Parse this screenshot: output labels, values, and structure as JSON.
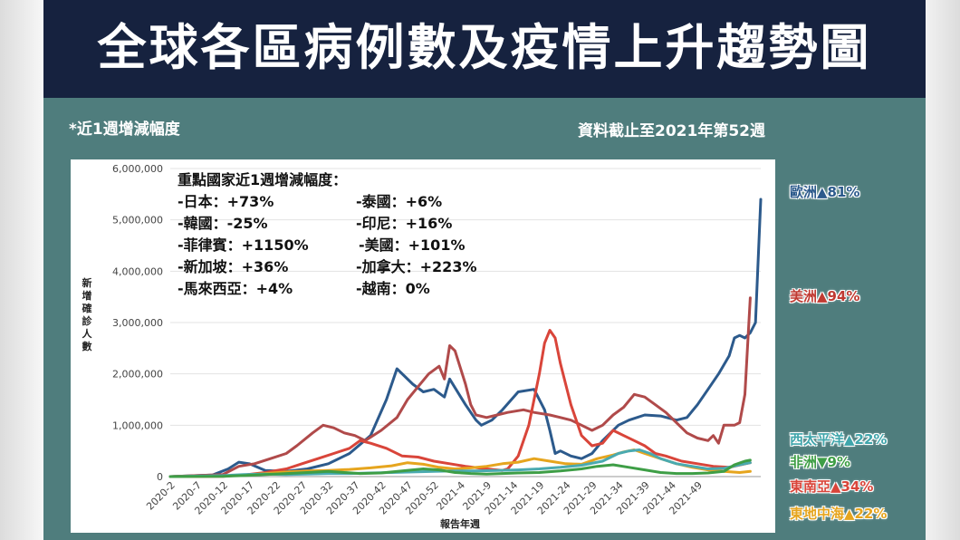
{
  "header": {
    "title": "全球各區病例數及疫情上升趨勢圖"
  },
  "notes": {
    "left": "*近1週增減幅度",
    "right": "資料截止至2021年第52週"
  },
  "callout": {
    "heading": "重點國家近1週增減幅度：",
    "items": [
      "-日本：+73%",
      "-泰國：+6%",
      "-韓國：-25%",
      "-印尼：+16%",
      "-菲律賓：+1150%",
      "-美國：+101%",
      "-新加坡：+36%",
      "-加拿大：+223%",
      "-馬來西亞：+4%",
      "-越南：0%"
    ]
  },
  "region_labels": {
    "europe": "歐洲▲81%",
    "americas": "美洲▲94%",
    "western_pacific": "西太平洋▲22%",
    "africa": "非洲▼9%",
    "southeast_asia": "東南亞▲34%",
    "eastern_mediterranean": "東地中海▲22%"
  },
  "chart_data": {
    "type": "line",
    "title": "",
    "xlabel": "報告年週",
    "ylabel": "新增確診人數",
    "ylim": [
      0,
      6000000
    ],
    "yticks": [
      0,
      1000000,
      2000000,
      3000000,
      4000000,
      5000000,
      6000000
    ],
    "ytick_labels": [
      "0",
      "1,000,000",
      "2,000,000",
      "3,000,000",
      "4,000,000",
      "5,000,000",
      "6,000,000"
    ],
    "xtick_labels": [
      "2020-2",
      "2020-7",
      "2020-12",
      "2020-17",
      "2020-22",
      "2020-27",
      "2020-32",
      "2020-37",
      "2020-42",
      "2020-47",
      "2020-52",
      "2021-4",
      "2021-9",
      "2021-14",
      "2021-19",
      "2021-24",
      "2021-29",
      "2021-34",
      "2021-39",
      "2021-44",
      "2021-49"
    ],
    "grid": true,
    "x_start": "2020-1",
    "x_end": "2021-52",
    "series": [
      {
        "name": "歐洲",
        "color": "#2c5a8c",
        "points": [
          [
            0,
            0
          ],
          [
            8,
            30000
          ],
          [
            11,
            150000
          ],
          [
            13,
            280000
          ],
          [
            15,
            250000
          ],
          [
            18,
            120000
          ],
          [
            22,
            100000
          ],
          [
            26,
            150000
          ],
          [
            30,
            250000
          ],
          [
            34,
            450000
          ],
          [
            38,
            800000
          ],
          [
            41,
            1500000
          ],
          [
            43,
            2100000
          ],
          [
            46,
            1800000
          ],
          [
            48,
            1650000
          ],
          [
            50,
            1700000
          ],
          [
            52,
            1550000
          ],
          [
            53,
            1900000
          ],
          [
            56,
            1400000
          ],
          [
            58,
            1100000
          ],
          [
            59,
            1000000
          ],
          [
            61,
            1100000
          ],
          [
            63,
            1300000
          ],
          [
            66,
            1650000
          ],
          [
            69,
            1700000
          ],
          [
            71,
            1300000
          ],
          [
            72,
            900000
          ],
          [
            73,
            450000
          ],
          [
            74,
            500000
          ],
          [
            76,
            400000
          ],
          [
            78,
            350000
          ],
          [
            80,
            450000
          ],
          [
            82,
            700000
          ],
          [
            85,
            1000000
          ],
          [
            87,
            1100000
          ],
          [
            90,
            1200000
          ],
          [
            93,
            1180000
          ],
          [
            96,
            1100000
          ],
          [
            98,
            1150000
          ],
          [
            100,
            1400000
          ],
          [
            102,
            1700000
          ],
          [
            104,
            2000000
          ],
          [
            106,
            2350000
          ],
          [
            107,
            2700000
          ],
          [
            108,
            2750000
          ],
          [
            109,
            2700000
          ],
          [
            110,
            2800000
          ],
          [
            111,
            3000000
          ],
          [
            112,
            5400000
          ]
        ]
      },
      {
        "name": "美洲",
        "color": "#b04a4a",
        "points": [
          [
            0,
            0
          ],
          [
            10,
            40000
          ],
          [
            13,
            200000
          ],
          [
            16,
            250000
          ],
          [
            19,
            350000
          ],
          [
            22,
            450000
          ],
          [
            24,
            600000
          ],
          [
            27,
            850000
          ],
          [
            29,
            1000000
          ],
          [
            31,
            950000
          ],
          [
            33,
            850000
          ],
          [
            35,
            800000
          ],
          [
            37,
            700000
          ],
          [
            40,
            900000
          ],
          [
            43,
            1150000
          ],
          [
            45,
            1500000
          ],
          [
            47,
            1750000
          ],
          [
            49,
            2000000
          ],
          [
            51,
            2150000
          ],
          [
            52,
            1900000
          ],
          [
            53,
            2550000
          ],
          [
            54,
            2450000
          ],
          [
            56,
            1800000
          ],
          [
            57,
            1400000
          ],
          [
            58,
            1200000
          ],
          [
            60,
            1150000
          ],
          [
            62,
            1200000
          ],
          [
            64,
            1250000
          ],
          [
            67,
            1300000
          ],
          [
            69,
            1250000
          ],
          [
            72,
            1200000
          ],
          [
            74,
            1150000
          ],
          [
            76,
            1100000
          ],
          [
            78,
            1000000
          ],
          [
            80,
            900000
          ],
          [
            82,
            1000000
          ],
          [
            84,
            1200000
          ],
          [
            86,
            1350000
          ],
          [
            88,
            1600000
          ],
          [
            90,
            1550000
          ],
          [
            92,
            1400000
          ],
          [
            94,
            1250000
          ],
          [
            96,
            1050000
          ],
          [
            98,
            850000
          ],
          [
            100,
            750000
          ],
          [
            102,
            700000
          ],
          [
            103,
            800000
          ],
          [
            104,
            650000
          ],
          [
            105,
            1000000
          ],
          [
            107,
            1000000
          ],
          [
            108,
            1050000
          ],
          [
            109,
            1600000
          ],
          [
            110,
            3480000
          ]
        ]
      },
      {
        "name": "東南亞",
        "color": "#d9453a",
        "points": [
          [
            0,
            0
          ],
          [
            10,
            5000
          ],
          [
            14,
            30000
          ],
          [
            18,
            80000
          ],
          [
            22,
            150000
          ],
          [
            25,
            250000
          ],
          [
            28,
            350000
          ],
          [
            31,
            450000
          ],
          [
            34,
            550000
          ],
          [
            36,
            700000
          ],
          [
            38,
            650000
          ],
          [
            41,
            550000
          ],
          [
            44,
            400000
          ],
          [
            47,
            380000
          ],
          [
            50,
            300000
          ],
          [
            53,
            250000
          ],
          [
            56,
            200000
          ],
          [
            60,
            150000
          ],
          [
            63,
            120000
          ],
          [
            64,
            150000
          ],
          [
            66,
            400000
          ],
          [
            68,
            1000000
          ],
          [
            70,
            2000000
          ],
          [
            71,
            2600000
          ],
          [
            72,
            2850000
          ],
          [
            73,
            2700000
          ],
          [
            74,
            2200000
          ],
          [
            76,
            1400000
          ],
          [
            78,
            800000
          ],
          [
            80,
            600000
          ],
          [
            82,
            650000
          ],
          [
            84,
            900000
          ],
          [
            86,
            800000
          ],
          [
            88,
            700000
          ],
          [
            90,
            600000
          ],
          [
            92,
            450000
          ],
          [
            94,
            400000
          ],
          [
            97,
            300000
          ],
          [
            100,
            250000
          ],
          [
            103,
            200000
          ],
          [
            106,
            180000
          ],
          [
            110,
            270000
          ]
        ]
      },
      {
        "name": "東地中海",
        "color": "#e6a51e",
        "points": [
          [
            0,
            0
          ],
          [
            10,
            10000
          ],
          [
            14,
            30000
          ],
          [
            18,
            60000
          ],
          [
            22,
            90000
          ],
          [
            26,
            110000
          ],
          [
            30,
            120000
          ],
          [
            34,
            140000
          ],
          [
            38,
            170000
          ],
          [
            42,
            210000
          ],
          [
            45,
            270000
          ],
          [
            48,
            240000
          ],
          [
            51,
            180000
          ],
          [
            54,
            150000
          ],
          [
            57,
            170000
          ],
          [
            60,
            200000
          ],
          [
            63,
            250000
          ],
          [
            66,
            280000
          ],
          [
            69,
            350000
          ],
          [
            72,
            300000
          ],
          [
            75,
            250000
          ],
          [
            78,
            240000
          ],
          [
            81,
            350000
          ],
          [
            84,
            420000
          ],
          [
            86,
            480000
          ],
          [
            88,
            520000
          ],
          [
            90,
            450000
          ],
          [
            93,
            350000
          ],
          [
            96,
            250000
          ],
          [
            99,
            180000
          ],
          [
            102,
            130000
          ],
          [
            105,
            100000
          ],
          [
            108,
            80000
          ],
          [
            110,
            100000
          ]
        ]
      },
      {
        "name": "西太平洋",
        "color": "#4aaab0",
        "points": [
          [
            0,
            0
          ],
          [
            10,
            20000
          ],
          [
            14,
            40000
          ],
          [
            18,
            50000
          ],
          [
            22,
            40000
          ],
          [
            26,
            50000
          ],
          [
            30,
            60000
          ],
          [
            34,
            60000
          ],
          [
            38,
            70000
          ],
          [
            42,
            80000
          ],
          [
            46,
            90000
          ],
          [
            50,
            100000
          ],
          [
            54,
            110000
          ],
          [
            58,
            110000
          ],
          [
            62,
            120000
          ],
          [
            66,
            130000
          ],
          [
            70,
            150000
          ],
          [
            74,
            180000
          ],
          [
            78,
            220000
          ],
          [
            82,
            300000
          ],
          [
            85,
            450000
          ],
          [
            87,
            500000
          ],
          [
            89,
            520000
          ],
          [
            91,
            450000
          ],
          [
            93,
            350000
          ],
          [
            96,
            250000
          ],
          [
            99,
            200000
          ],
          [
            102,
            150000
          ],
          [
            105,
            160000
          ],
          [
            108,
            230000
          ],
          [
            110,
            270000
          ]
        ]
      },
      {
        "name": "非洲",
        "color": "#3e9e46",
        "points": [
          [
            0,
            0
          ],
          [
            10,
            5000
          ],
          [
            14,
            20000
          ],
          [
            18,
            40000
          ],
          [
            22,
            60000
          ],
          [
            26,
            80000
          ],
          [
            30,
            100000
          ],
          [
            33,
            80000
          ],
          [
            36,
            60000
          ],
          [
            40,
            70000
          ],
          [
            44,
            110000
          ],
          [
            48,
            150000
          ],
          [
            51,
            130000
          ],
          [
            54,
            80000
          ],
          [
            57,
            60000
          ],
          [
            60,
            50000
          ],
          [
            63,
            60000
          ],
          [
            66,
            70000
          ],
          [
            70,
            80000
          ],
          [
            74,
            110000
          ],
          [
            78,
            150000
          ],
          [
            81,
            200000
          ],
          [
            84,
            230000
          ],
          [
            87,
            180000
          ],
          [
            90,
            130000
          ],
          [
            93,
            80000
          ],
          [
            96,
            60000
          ],
          [
            99,
            60000
          ],
          [
            102,
            70000
          ],
          [
            105,
            100000
          ],
          [
            107,
            230000
          ],
          [
            109,
            300000
          ],
          [
            110,
            320000
          ]
        ]
      }
    ]
  }
}
